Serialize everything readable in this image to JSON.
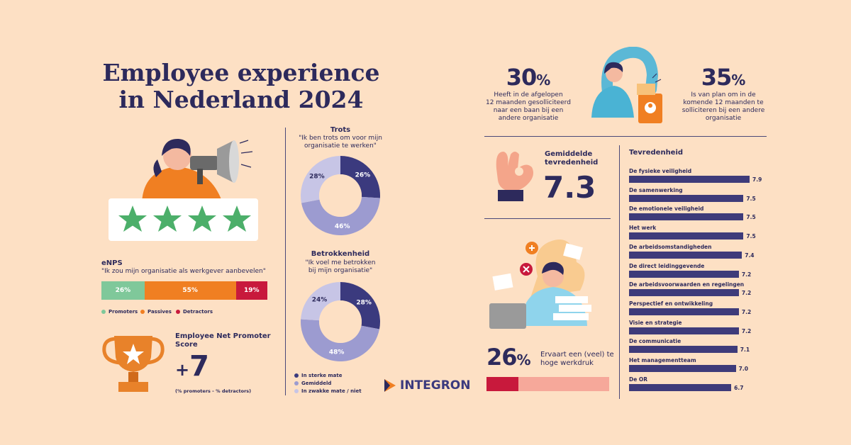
{
  "title_line1": "Employee experience",
  "title_line2": "in Nederland 2024",
  "enps": {
    "title": "eNPS",
    "quote": "\"Ik zou mijn organisatie als werkgever aanbevelen\"",
    "segments": [
      {
        "label": "26%",
        "value": 26,
        "color": "#7fc89a"
      },
      {
        "label": "55%",
        "value": 55,
        "color": "#f07f22"
      },
      {
        "label": "19%",
        "value": 19,
        "color": "#c8193c"
      }
    ],
    "legend": [
      "Promoters",
      "Passives",
      "Detractors"
    ],
    "score_title_line1": "Employee Net Promoter",
    "score_title_line2": "Score",
    "score_sign": "+",
    "score_value": "7",
    "score_note": "(% promoters - % detractors)"
  },
  "trots": {
    "title": "Trots",
    "quote_line1": "\"Ik ben trots om voor mijn",
    "quote_line2": "organisatie te werken\""
  },
  "betrokkenheid": {
    "title": "Betrokkenheid",
    "quote_line1": "\"Ik voel me betrokken",
    "quote_line2": "bij mijn organisatie\""
  },
  "donut_legend": [
    "In sterke mate",
    "Gemiddeld",
    "In zwakke mate / niet"
  ],
  "colors": {
    "strong": "#3b3a7e",
    "average": "#9c9bd0",
    "weak": "#c7c5e6",
    "hole": "#fde0c4"
  },
  "stat_30": {
    "value": "30",
    "sign": "%",
    "text": [
      "Heeft in de afgelopen",
      "12 maanden gesolliciteerd",
      "naar een baan bij een",
      "andere organisatie"
    ]
  },
  "stat_35": {
    "value": "35",
    "sign": "%",
    "text": [
      "Is van plan om in de",
      "komende 12 maanden te",
      "solliciteren bij een andere",
      "organisatie"
    ]
  },
  "satisfaction": {
    "label_line1": "Gemiddelde",
    "label_line2": "tevredenheid",
    "value": "7.3"
  },
  "workload": {
    "value": "26",
    "sign": "%",
    "text_line1": "Ervaart een (veel) te",
    "text_line2": "hoge werkdruk",
    "fraction": 0.26
  },
  "brand": "INTEGRON",
  "tevredenheid_title": "Tevredenheid",
  "chart_data": [
    {
      "type": "pie",
      "title": "Trots",
      "categories": [
        "In sterke mate",
        "Gemiddeld",
        "In zwakke mate / niet"
      ],
      "values": [
        26,
        46,
        28
      ],
      "labels": [
        "26%",
        "46%",
        "28%"
      ]
    },
    {
      "type": "pie",
      "title": "Betrokkenheid",
      "categories": [
        "In sterke mate",
        "Gemiddeld",
        "In zwakke mate / niet"
      ],
      "values": [
        28,
        48,
        24
      ],
      "labels": [
        "28%",
        "48%",
        "24%"
      ]
    },
    {
      "type": "bar",
      "title": "Tevredenheid",
      "categories": [
        "De fysieke veiligheid",
        "De samenwerking",
        "De emotionele veiligheid",
        "Het werk",
        "De arbeidsomstandigheden",
        "De direct leidinggevende",
        "De arbeidsvoorwaarden en regelingen",
        "Perspectief en ontwikkeling",
        "Visie en strategie",
        "De communicatie",
        "Het managementteam",
        "De OR"
      ],
      "values": [
        7.9,
        7.5,
        7.5,
        7.5,
        7.4,
        7.2,
        7.2,
        7.2,
        7.2,
        7.1,
        7.0,
        6.7
      ],
      "labels": [
        "7.9",
        "7.5",
        "7.5",
        "7.5",
        "7.4",
        "7.2",
        "7.2",
        "7.2",
        "7.2",
        "7.1",
        "7.0",
        "6.7"
      ]
    }
  ]
}
